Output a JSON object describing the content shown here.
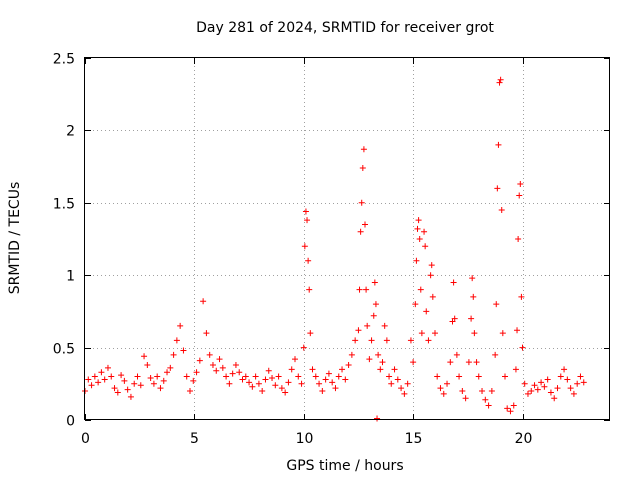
{
  "chart_data": {
    "type": "scatter",
    "title": "Day 281 of 2024, SRMTID for receiver grot",
    "xlabel": "GPS time / hours",
    "ylabel": "SRMTID / TECUs",
    "xlim": [
      0,
      24
    ],
    "ylim": [
      0,
      2.5
    ],
    "x_ticks": [
      0,
      5,
      10,
      15,
      20
    ],
    "x_tick_labels": [
      "0",
      "5",
      "10",
      "15",
      "20"
    ],
    "y_ticks": [
      0,
      0.5,
      1,
      1.5,
      2,
      2.5
    ],
    "y_tick_labels": [
      "0",
      "0.5",
      "1",
      "1.5",
      "2",
      "2.5"
    ],
    "grid": true,
    "marker": "+",
    "color": "#ff0000",
    "series": [
      {
        "name": "SRMTID",
        "points": [
          [
            0.0,
            0.2
          ],
          [
            0.15,
            0.28
          ],
          [
            0.3,
            0.24
          ],
          [
            0.45,
            0.3
          ],
          [
            0.6,
            0.26
          ],
          [
            0.75,
            0.33
          ],
          [
            0.9,
            0.28
          ],
          [
            1.05,
            0.36
          ],
          [
            1.2,
            0.3
          ],
          [
            1.35,
            0.22
          ],
          [
            1.5,
            0.19
          ],
          [
            1.65,
            0.31
          ],
          [
            1.8,
            0.27
          ],
          [
            1.95,
            0.21
          ],
          [
            2.1,
            0.16
          ],
          [
            2.25,
            0.25
          ],
          [
            2.4,
            0.3
          ],
          [
            2.55,
            0.24
          ],
          [
            2.7,
            0.44
          ],
          [
            2.85,
            0.38
          ],
          [
            3.0,
            0.29
          ],
          [
            3.15,
            0.25
          ],
          [
            3.3,
            0.3
          ],
          [
            3.45,
            0.22
          ],
          [
            3.6,
            0.27
          ],
          [
            3.75,
            0.33
          ],
          [
            3.9,
            0.36
          ],
          [
            4.05,
            0.45
          ],
          [
            4.2,
            0.55
          ],
          [
            4.35,
            0.65
          ],
          [
            4.5,
            0.48
          ],
          [
            4.65,
            0.3
          ],
          [
            4.8,
            0.2
          ],
          [
            4.95,
            0.27
          ],
          [
            5.1,
            0.33
          ],
          [
            5.25,
            0.41
          ],
          [
            5.4,
            0.82
          ],
          [
            5.55,
            0.6
          ],
          [
            5.7,
            0.45
          ],
          [
            5.85,
            0.38
          ],
          [
            6.0,
            0.34
          ],
          [
            6.15,
            0.42
          ],
          [
            6.3,
            0.36
          ],
          [
            6.45,
            0.3
          ],
          [
            6.6,
            0.25
          ],
          [
            6.75,
            0.32
          ],
          [
            6.9,
            0.38
          ],
          [
            7.05,
            0.33
          ],
          [
            7.2,
            0.28
          ],
          [
            7.35,
            0.3
          ],
          [
            7.5,
            0.26
          ],
          [
            7.65,
            0.23
          ],
          [
            7.8,
            0.3
          ],
          [
            7.95,
            0.25
          ],
          [
            8.1,
            0.2
          ],
          [
            8.25,
            0.28
          ],
          [
            8.4,
            0.34
          ],
          [
            8.55,
            0.29
          ],
          [
            8.7,
            0.24
          ],
          [
            8.85,
            0.3
          ],
          [
            9.0,
            0.22
          ],
          [
            9.15,
            0.19
          ],
          [
            9.3,
            0.26
          ],
          [
            9.45,
            0.35
          ],
          [
            9.6,
            0.42
          ],
          [
            9.75,
            0.3
          ],
          [
            9.9,
            0.25
          ],
          [
            10.0,
            0.5
          ],
          [
            10.05,
            1.2
          ],
          [
            10.1,
            1.44
          ],
          [
            10.15,
            1.38
          ],
          [
            10.2,
            1.1
          ],
          [
            10.25,
            0.9
          ],
          [
            10.3,
            0.6
          ],
          [
            10.4,
            0.35
          ],
          [
            10.55,
            0.3
          ],
          [
            10.7,
            0.25
          ],
          [
            10.85,
            0.2
          ],
          [
            11.0,
            0.28
          ],
          [
            11.15,
            0.32
          ],
          [
            11.3,
            0.26
          ],
          [
            11.45,
            0.22
          ],
          [
            11.6,
            0.3
          ],
          [
            11.75,
            0.35
          ],
          [
            11.9,
            0.28
          ],
          [
            12.05,
            0.38
          ],
          [
            12.2,
            0.45
          ],
          [
            12.35,
            0.55
          ],
          [
            12.5,
            0.62
          ],
          [
            12.55,
            0.9
          ],
          [
            12.6,
            1.3
          ],
          [
            12.65,
            1.5
          ],
          [
            12.7,
            1.74
          ],
          [
            12.75,
            1.87
          ],
          [
            12.8,
            1.35
          ],
          [
            12.85,
            0.9
          ],
          [
            12.9,
            0.65
          ],
          [
            13.0,
            0.42
          ],
          [
            13.1,
            0.55
          ],
          [
            13.2,
            0.72
          ],
          [
            13.25,
            0.95
          ],
          [
            13.3,
            0.8
          ],
          [
            13.35,
            0.01
          ],
          [
            13.4,
            0.45
          ],
          [
            13.5,
            0.35
          ],
          [
            13.6,
            0.4
          ],
          [
            13.7,
            0.65
          ],
          [
            13.8,
            0.55
          ],
          [
            13.9,
            0.3
          ],
          [
            14.0,
            0.25
          ],
          [
            14.15,
            0.35
          ],
          [
            14.3,
            0.28
          ],
          [
            14.45,
            0.22
          ],
          [
            14.6,
            0.18
          ],
          [
            14.75,
            0.25
          ],
          [
            14.9,
            0.55
          ],
          [
            15.0,
            0.4
          ],
          [
            15.1,
            0.8
          ],
          [
            15.15,
            1.1
          ],
          [
            15.2,
            1.32
          ],
          [
            15.25,
            1.38
          ],
          [
            15.3,
            1.25
          ],
          [
            15.35,
            0.9
          ],
          [
            15.4,
            0.6
          ],
          [
            15.5,
            1.3
          ],
          [
            15.55,
            1.2
          ],
          [
            15.6,
            0.75
          ],
          [
            15.7,
            0.55
          ],
          [
            15.8,
            1.0
          ],
          [
            15.85,
            1.07
          ],
          [
            15.9,
            0.85
          ],
          [
            16.0,
            0.6
          ],
          [
            16.1,
            0.3
          ],
          [
            16.25,
            0.22
          ],
          [
            16.4,
            0.18
          ],
          [
            16.55,
            0.25
          ],
          [
            16.7,
            0.4
          ],
          [
            16.8,
            0.68
          ],
          [
            16.85,
            0.95
          ],
          [
            16.9,
            0.7
          ],
          [
            17.0,
            0.45
          ],
          [
            17.1,
            0.3
          ],
          [
            17.25,
            0.2
          ],
          [
            17.4,
            0.15
          ],
          [
            17.55,
            0.4
          ],
          [
            17.65,
            0.7
          ],
          [
            17.7,
            0.98
          ],
          [
            17.75,
            0.85
          ],
          [
            17.8,
            0.6
          ],
          [
            17.9,
            0.4
          ],
          [
            18.0,
            0.3
          ],
          [
            18.15,
            0.2
          ],
          [
            18.3,
            0.14
          ],
          [
            18.45,
            0.1
          ],
          [
            18.6,
            0.2
          ],
          [
            18.75,
            0.45
          ],
          [
            18.8,
            0.8
          ],
          [
            18.85,
            1.6
          ],
          [
            18.9,
            1.9
          ],
          [
            18.95,
            2.33
          ],
          [
            19.0,
            2.35
          ],
          [
            19.05,
            1.45
          ],
          [
            19.1,
            0.6
          ],
          [
            19.2,
            0.3
          ],
          [
            19.3,
            0.08
          ],
          [
            19.45,
            0.06
          ],
          [
            19.6,
            0.1
          ],
          [
            19.7,
            0.35
          ],
          [
            19.75,
            0.62
          ],
          [
            19.8,
            1.25
          ],
          [
            19.85,
            1.55
          ],
          [
            19.9,
            1.63
          ],
          [
            19.95,
            0.85
          ],
          [
            20.0,
            0.5
          ],
          [
            20.1,
            0.25
          ],
          [
            20.25,
            0.18
          ],
          [
            20.4,
            0.2
          ],
          [
            20.55,
            0.24
          ],
          [
            20.7,
            0.21
          ],
          [
            20.85,
            0.26
          ],
          [
            21.0,
            0.23
          ],
          [
            21.15,
            0.28
          ],
          [
            21.3,
            0.19
          ],
          [
            21.45,
            0.15
          ],
          [
            21.6,
            0.22
          ],
          [
            21.75,
            0.3
          ],
          [
            21.9,
            0.35
          ],
          [
            22.05,
            0.28
          ],
          [
            22.2,
            0.22
          ],
          [
            22.35,
            0.18
          ],
          [
            22.5,
            0.25
          ],
          [
            22.65,
            0.3
          ],
          [
            22.8,
            0.26
          ]
        ]
      }
    ]
  }
}
